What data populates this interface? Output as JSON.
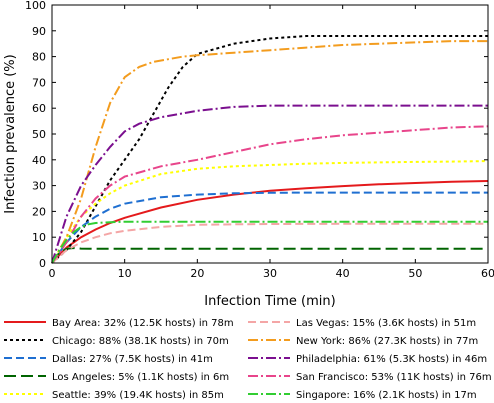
{
  "chart_data": {
    "type": "line",
    "title": "",
    "xlabel": "Infection Time (min)",
    "ylabel": "Infection prevalence (%)",
    "xlim": [
      0,
      60
    ],
    "ylim": [
      0,
      100
    ],
    "xticks": [
      0,
      10,
      20,
      30,
      40,
      50,
      60
    ],
    "yticks": [
      0,
      10,
      20,
      30,
      40,
      50,
      60,
      70,
      80,
      90,
      100
    ],
    "grid": false,
    "legend_position": "bottom",
    "series": [
      {
        "name": "Bay Area: 32% (12.5K hosts) in 78m",
        "color": "#e41a1c",
        "dash": "solid",
        "x": [
          0,
          2,
          4,
          6,
          8,
          10,
          15,
          20,
          25,
          30,
          35,
          40,
          45,
          50,
          55,
          60
        ],
        "y": [
          0,
          6,
          10,
          13,
          15.5,
          17.5,
          21.5,
          24.5,
          26.5,
          28,
          29,
          29.8,
          30.5,
          31,
          31.5,
          31.8
        ]
      },
      {
        "name": "Chicago: 88% (38.1K hosts) in 70m",
        "color": "#000000",
        "dash": "dot",
        "x": [
          0,
          2,
          4,
          6,
          8,
          10,
          12,
          14,
          16,
          18,
          20,
          25,
          30,
          35,
          40,
          45,
          50,
          55,
          60
        ],
        "y": [
          0,
          5,
          12,
          22,
          32,
          40,
          48,
          58,
          68,
          76,
          81,
          85,
          87,
          88,
          88,
          88,
          88,
          88,
          88
        ]
      },
      {
        "name": "Dallas: 27% (7.5K hosts) in 41m",
        "color": "#1f6fd1",
        "dash": "dash",
        "x": [
          0,
          2,
          4,
          6,
          8,
          10,
          15,
          20,
          25,
          30,
          35,
          40,
          45,
          50,
          55,
          60
        ],
        "y": [
          0,
          8,
          14,
          18,
          21,
          23,
          25.5,
          26.5,
          27,
          27.2,
          27.3,
          27.3,
          27.3,
          27.3,
          27.3,
          27.3
        ]
      },
      {
        "name": "Los Angeles: 5% (1.1K hosts) in 6m",
        "color": "#006400",
        "dash": "longdash",
        "x": [
          0,
          1,
          2,
          3,
          4,
          6,
          10,
          20,
          30,
          40,
          50,
          60
        ],
        "y": [
          0,
          4,
          5.5,
          5.8,
          5.6,
          5.5,
          5.5,
          5.5,
          5.5,
          5.5,
          5.5,
          5.5
        ]
      },
      {
        "name": "Seattle: 39% (19.4K hosts) in 85m",
        "color": "#ffff00",
        "dash": "dot",
        "x": [
          0,
          2,
          4,
          6,
          8,
          10,
          15,
          20,
          25,
          30,
          35,
          40,
          45,
          50,
          55,
          60
        ],
        "y": [
          0,
          10,
          18,
          23,
          27,
          30,
          34.5,
          36.5,
          37.5,
          38,
          38.5,
          38.8,
          39,
          39.2,
          39.3,
          39.5
        ]
      },
      {
        "name": "Las Vegas: 15% (3.6K hosts) in 51m",
        "color": "#f4a6a6",
        "dash": "dash",
        "x": [
          0,
          2,
          4,
          6,
          8,
          10,
          15,
          20,
          25,
          30,
          40,
          50,
          60
        ],
        "y": [
          0,
          5,
          8,
          10,
          11.5,
          12.5,
          14,
          14.8,
          15,
          15.1,
          15.2,
          15.2,
          15.2
        ]
      },
      {
        "name": "New York: 86% (27.3K hosts) in 77m",
        "color": "#f39c1e",
        "dash": "dashdot",
        "x": [
          0,
          2,
          4,
          6,
          8,
          10,
          12,
          14,
          16,
          18,
          20,
          25,
          30,
          35,
          40,
          45,
          50,
          55,
          60
        ],
        "y": [
          0,
          10,
          25,
          45,
          62,
          72,
          76,
          78,
          79,
          80,
          80.5,
          81.5,
          82.5,
          83.5,
          84.5,
          85,
          85.5,
          86,
          86
        ]
      },
      {
        "name": "Philadelphia: 61% (5.3K hosts) in 46m",
        "color": "#7b0f8f",
        "dash": "dashdot",
        "x": [
          0,
          2,
          4,
          6,
          8,
          10,
          12,
          15,
          20,
          25,
          30,
          35,
          40,
          45,
          50,
          55,
          60
        ],
        "y": [
          0,
          18,
          30,
          38,
          45,
          51,
          54,
          56.5,
          59,
          60.5,
          61,
          61,
          61,
          61,
          61,
          61,
          61
        ]
      },
      {
        "name": "San Francisco: 53% (11K hosts) in 76m",
        "color": "#e8458b",
        "dash": "dashdot",
        "x": [
          0,
          2,
          4,
          6,
          8,
          10,
          15,
          20,
          25,
          30,
          35,
          40,
          45,
          50,
          55,
          60
        ],
        "y": [
          0,
          8,
          18,
          25,
          30,
          33.5,
          37.5,
          40,
          43,
          46,
          48,
          49.5,
          50.5,
          51.5,
          52.5,
          53
        ]
      },
      {
        "name": "Singapore: 16% (2.1K hosts) in 17m",
        "color": "#32cd32",
        "dash": "dashdot",
        "x": [
          0,
          1,
          2,
          3,
          4,
          5,
          6,
          8,
          10,
          15,
          20,
          30,
          40,
          50,
          60
        ],
        "y": [
          0,
          5,
          9,
          12,
          14,
          15,
          15.5,
          15.8,
          16,
          16,
          16,
          16,
          16,
          16,
          16
        ]
      }
    ]
  }
}
